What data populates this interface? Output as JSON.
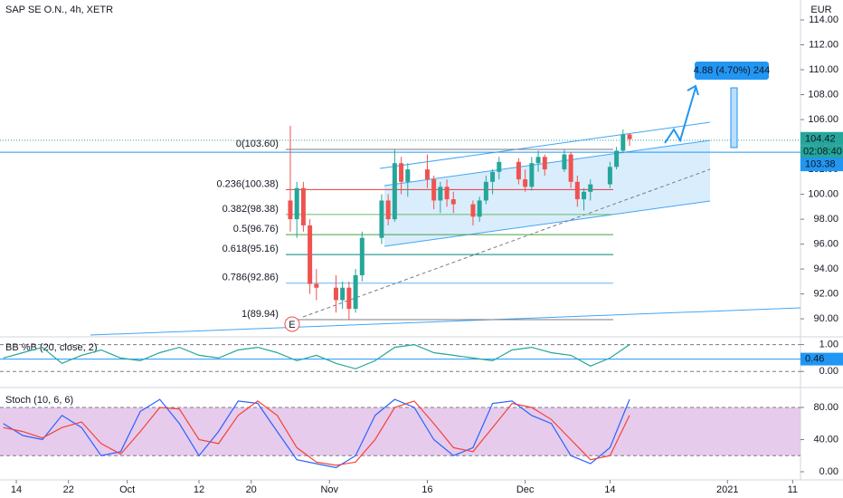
{
  "chart_data": [
    {
      "type": "candlestick",
      "title": "SAP SE O.N., 4h, XETR",
      "currency": "EUR",
      "x": [
        55,
        56,
        57,
        58,
        59,
        62,
        63,
        64,
        65,
        66,
        69,
        70,
        71,
        72,
        73,
        76,
        77,
        78,
        79,
        80,
        83,
        84,
        85,
        86,
        87,
        90,
        91,
        92,
        93,
        94,
        97,
        98,
        99,
        100,
        101,
        104,
        105,
        106,
        107
      ],
      "open": [
        99.5,
        98,
        100.5,
        97.5,
        92.8,
        92.5,
        91.5,
        92.5,
        90.8,
        93.5,
        96.5,
        99.5,
        98,
        102.5,
        101,
        102,
        101.2,
        99.5,
        100.6,
        99.6,
        99.2,
        98.2,
        99.5,
        101,
        101.8,
        102.6,
        101.2,
        100.6,
        102.5,
        103,
        102,
        103.2,
        101,
        99.6,
        100.2,
        100.8,
        102.2,
        103.5,
        104.8
      ],
      "high": [
        105.5,
        101,
        101,
        98,
        94,
        93.5,
        93,
        93,
        94,
        97,
        100,
        100,
        103.6,
        103,
        102.5,
        103.2,
        101.5,
        101,
        101.2,
        100.2,
        99.5,
        99.8,
        101.5,
        102,
        103,
        102.9,
        102,
        103,
        103.5,
        103.2,
        103.6,
        103.4,
        101.5,
        100.5,
        101.2,
        102.6,
        103.8,
        105.2,
        104.9
      ],
      "low": [
        97,
        96.5,
        97,
        92,
        91.5,
        90.5,
        90.8,
        89.94,
        90.5,
        93,
        96,
        97.5,
        97.8,
        100,
        99.8,
        100.5,
        98.8,
        98.5,
        99,
        98.5,
        97.5,
        97.8,
        99.2,
        100,
        101.2,
        100.8,
        100.2,
        100.3,
        101.8,
        101.5,
        101.8,
        100.5,
        99,
        98.7,
        99.5,
        100.5,
        102,
        103.3,
        103.9
      ],
      "close": [
        98,
        100.5,
        97.5,
        92.8,
        92.5,
        91.5,
        92.5,
        90.8,
        93.5,
        96.5,
        99.5,
        98,
        102.5,
        101,
        102,
        101.2,
        99.5,
        100.6,
        99.6,
        99.2,
        98.2,
        99.5,
        101,
        101.8,
        102.6,
        101.2,
        100.6,
        102.5,
        103,
        102,
        103.2,
        101,
        99.6,
        100.2,
        100.8,
        102.2,
        103.5,
        104.8,
        104.42
      ],
      "up_color": "#26a69a",
      "down_color": "#ef5350",
      "xlim": [
        10.5,
        133.2
      ],
      "ylim": [
        88.7,
        115.6
      ],
      "yticks": [
        {
          "value": 90,
          "label": "90.00"
        },
        {
          "value": 92,
          "label": "92.00"
        },
        {
          "value": 94,
          "label": "94.00"
        },
        {
          "value": 96,
          "label": "96.00"
        },
        {
          "value": 98,
          "label": "98.00"
        },
        {
          "value": 100,
          "label": "100.00"
        },
        {
          "value": 102,
          "label": "102.00"
        },
        {
          "value": 104,
          "label": "104.00"
        },
        {
          "value": 106,
          "label": "106.00"
        },
        {
          "value": 108,
          "label": "108.00"
        },
        {
          "value": 110,
          "label": "110.00"
        },
        {
          "value": 112,
          "label": "112.00"
        },
        {
          "value": 114,
          "label": "114.00"
        }
      ],
      "fib_levels": [
        {
          "value": 103.6,
          "label": "0(103.60)",
          "color": "#787b86"
        },
        {
          "value": 100.38,
          "label": "0.236(100.38)",
          "color": "#e53935"
        },
        {
          "value": 98.38,
          "label": "0.382(98.38)",
          "color": "#66bb6a"
        },
        {
          "value": 96.76,
          "label": "0.5(96.76)",
          "color": "#43a047"
        },
        {
          "value": 95.16,
          "label": "0.618(95.16)",
          "color": "#00897b"
        },
        {
          "value": 92.86,
          "label": "0.786(92.86)",
          "color": "#64b5f6"
        },
        {
          "value": 89.94,
          "label": "1(89.94)",
          "color": "#787b86"
        }
      ],
      "last_price": 104.42,
      "countdown": "02:08:40",
      "line_level": 103.38,
      "projection": "4.88 (4.70%) 244",
      "event": "E"
    },
    {
      "type": "line",
      "title": "BB %B (20, close, 2)",
      "xlim": [
        10.5,
        133.2
      ],
      "ylim": [
        -0.6,
        1.29
      ],
      "yticks": [
        {
          "value": 0,
          "label": "0.00"
        },
        {
          "value": 1,
          "label": "1.00"
        }
      ],
      "level": 0.46,
      "x": [
        11,
        14,
        17,
        20,
        23,
        26,
        29,
        32,
        35,
        38,
        41,
        44,
        47,
        50,
        53,
        56,
        59,
        62,
        65,
        68,
        71,
        74,
        77,
        80,
        83,
        86,
        89,
        92,
        95,
        98,
        101,
        104,
        107
      ],
      "series": [
        {
          "color": "#26a69a",
          "values": [
            0.5,
            0.7,
            0.9,
            0.3,
            0.6,
            0.8,
            0.5,
            0.4,
            0.7,
            0.9,
            0.6,
            0.5,
            0.8,
            0.9,
            0.7,
            0.4,
            0.6,
            0.3,
            0.1,
            0.4,
            0.9,
            1.0,
            0.7,
            0.6,
            0.5,
            0.4,
            0.8,
            0.9,
            0.7,
            0.6,
            0.2,
            0.5,
            1.0
          ]
        }
      ]
    },
    {
      "type": "line",
      "title": "Stoch (10, 6, 6)",
      "xlim": [
        10.5,
        133.2
      ],
      "ylim": [
        -7.9,
        102.5
      ],
      "yticks": [
        {
          "value": 0,
          "label": "0.00"
        },
        {
          "value": 40,
          "label": "40.00"
        },
        {
          "value": 80,
          "label": "80.00"
        }
      ],
      "band": [
        20,
        80
      ],
      "x": [
        11,
        14,
        17,
        20,
        23,
        26,
        29,
        32,
        35,
        38,
        41,
        44,
        47,
        50,
        53,
        56,
        59,
        62,
        65,
        68,
        71,
        74,
        77,
        80,
        83,
        86,
        89,
        92,
        95,
        98,
        101,
        104,
        107
      ],
      "series": [
        {
          "color": "#2962ff",
          "values": [
            60,
            45,
            40,
            70,
            55,
            20,
            25,
            75,
            90,
            60,
            20,
            50,
            88,
            85,
            50,
            15,
            10,
            5,
            20,
            70,
            90,
            80,
            40,
            20,
            30,
            85,
            88,
            70,
            60,
            20,
            10,
            30,
            90
          ]
        },
        {
          "color": "#f44336",
          "values": [
            55,
            50,
            42,
            55,
            62,
            35,
            22,
            50,
            80,
            78,
            40,
            35,
            70,
            88,
            70,
            30,
            12,
            8,
            12,
            40,
            80,
            88,
            60,
            30,
            25,
            55,
            85,
            80,
            65,
            40,
            15,
            20,
            70
          ]
        }
      ],
      "xticks": [
        {
          "value": 13,
          "label": "14"
        },
        {
          "value": 21,
          "label": "22"
        },
        {
          "value": 30,
          "label": "Oct"
        },
        {
          "value": 41,
          "label": "12"
        },
        {
          "value": 49,
          "label": "20"
        },
        {
          "value": 61,
          "label": "Nov"
        },
        {
          "value": 76,
          "label": "16"
        },
        {
          "value": 91,
          "label": "Dec"
        },
        {
          "value": 104,
          "label": "14"
        },
        {
          "value": 122,
          "label": "2021"
        },
        {
          "value": 132,
          "label": "11"
        }
      ]
    }
  ]
}
